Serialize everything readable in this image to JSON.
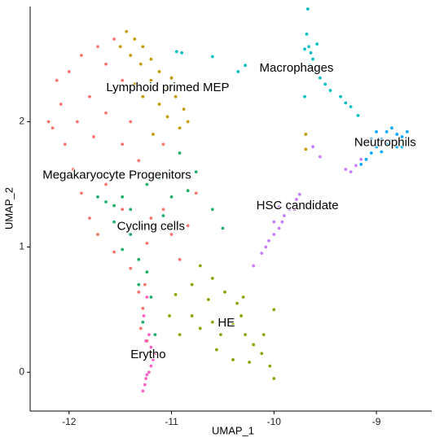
{
  "chart_data": {
    "type": "scatter",
    "xlabel": "UMAP_1",
    "ylabel": "UMAP_2",
    "xlim": [
      -12.38,
      -8.46
    ],
    "ylim": [
      -0.31,
      2.92
    ],
    "xticks": [
      -12,
      -11,
      -10,
      -9
    ],
    "yticks": [
      0,
      1,
      2
    ],
    "series": [
      {
        "name": "Megakaryocyte Progenitors",
        "color": "#F8766D",
        "x": [
          -12.12,
          -12.08,
          -12.16,
          -12.04,
          -11.96,
          -11.88,
          -11.8,
          -11.72,
          -11.56,
          -11.4,
          -11.32,
          -11.28,
          -11.24,
          -12.0,
          -11.88,
          -11.72,
          -11.56,
          -11.64,
          -11.48,
          -11.8,
          -11.64,
          -11.48,
          -11.32,
          -11.16,
          -11.08,
          -11.0,
          -10.84,
          -10.92,
          -11.24,
          -11.48,
          -11.64,
          -12.2,
          -11.92,
          -11.76,
          -11.4,
          -11.08,
          -11.2,
          -10.76,
          -11.3,
          -11.26
        ],
        "values": [
          2.33,
          2.14,
          1.95,
          1.82,
          1.62,
          1.43,
          1.23,
          1.1,
          0.96,
          0.83,
          0.64,
          0.51,
          0.25,
          2.4,
          2.53,
          2.6,
          2.66,
          2.46,
          2.33,
          2.2,
          2.07,
          1.82,
          1.69,
          1.56,
          1.3,
          1.1,
          1.17,
          0.9,
          1.03,
          1.3,
          1.5,
          2.0,
          2.0,
          1.88,
          2.0,
          1.82,
          1.23,
          1.43,
          0.35,
          0.7
        ]
      },
      {
        "name": "Lymphoid primed MEP",
        "color": "#C49A00",
        "x": [
          -11.44,
          -11.36,
          -11.28,
          -11.4,
          -11.2,
          -11.12,
          -11.2,
          -11.04,
          -10.96,
          -11.12,
          -10.88,
          -11.28,
          -11.04,
          -10.92,
          -11.3,
          -11.36,
          -11.0,
          -10.84,
          -11.5,
          -11.18,
          -9.69,
          -9.69
        ],
        "values": [
          2.72,
          2.66,
          2.6,
          2.53,
          2.5,
          2.4,
          2.33,
          2.27,
          2.2,
          2.14,
          2.1,
          2.2,
          2.04,
          1.95,
          2.46,
          2.3,
          2.35,
          2.0,
          2.6,
          1.9,
          1.78,
          1.9
        ]
      },
      {
        "name": "Cycling cells",
        "color": "#1FAE6B",
        "x": [
          -11.72,
          -11.64,
          -11.56,
          -11.48,
          -11.4,
          -11.56,
          -11.4,
          -11.48,
          -11.32,
          -11.24,
          -11.2,
          -11.28,
          -11.16,
          -11.08,
          -11.0,
          -10.84,
          -10.76,
          -10.92,
          -11.24,
          -11.12,
          -10.6,
          -10.5,
          -11.32,
          -11.0
        ],
        "values": [
          1.4,
          1.36,
          1.33,
          1.4,
          1.3,
          1.2,
          1.1,
          0.98,
          0.9,
          0.8,
          0.6,
          0.4,
          0.3,
          1.25,
          1.4,
          1.45,
          1.6,
          1.75,
          1.5,
          1.55,
          1.3,
          1.15,
          0.7,
          1.15
        ]
      },
      {
        "name": "HE",
        "color": "#8FA300",
        "x": [
          -10.72,
          -10.8,
          -10.96,
          -10.64,
          -10.48,
          -10.36,
          -10.3,
          -10.8,
          -10.72,
          -10.6,
          -10.52,
          -10.4,
          -10.32,
          -10.28,
          -10.2,
          -10.12,
          -10.04,
          -10.0,
          -10.1,
          -10.0,
          -11.02,
          -10.92,
          -10.56,
          -10.4,
          -10.24,
          -10.6
        ],
        "values": [
          0.85,
          0.7,
          0.62,
          0.58,
          0.64,
          0.55,
          0.6,
          0.45,
          0.35,
          0.4,
          0.3,
          0.38,
          0.45,
          0.3,
          0.22,
          0.15,
          0.05,
          -0.05,
          0.3,
          0.5,
          0.45,
          0.3,
          0.18,
          0.1,
          0.08,
          0.75
        ]
      },
      {
        "name": "HSC candidate",
        "color": "#C77CFF",
        "x": [
          -10.2,
          -10.12,
          -10.05,
          -10.0,
          -9.95,
          -9.9,
          -9.85,
          -9.78,
          -9.75,
          -9.92,
          -10.08,
          -9.95,
          -9.8,
          -10.0,
          -9.25,
          -9.2,
          -9.3,
          -9.55,
          -9.62,
          -9.15
        ],
        "values": [
          0.85,
          0.95,
          1.05,
          1.1,
          1.15,
          1.25,
          1.3,
          1.38,
          1.42,
          1.2,
          1.0,
          1.32,
          1.3,
          1.2,
          1.6,
          1.65,
          1.62,
          1.72,
          1.8,
          1.7
        ]
      },
      {
        "name": "Macrophages",
        "color": "#00BFC4",
        "x": [
          -9.68,
          -9.66,
          -9.64,
          -9.7,
          -9.62,
          -9.65,
          -9.6,
          -9.55,
          -9.5,
          -9.45,
          -9.35,
          -9.3,
          -9.25,
          -9.18,
          -9.58,
          -9.67,
          -9.7,
          -10.9,
          -10.95,
          -10.6,
          -10.35,
          -10.28
        ],
        "values": [
          2.7,
          2.6,
          2.55,
          2.58,
          2.5,
          2.45,
          2.4,
          2.35,
          2.3,
          2.25,
          2.2,
          2.15,
          2.12,
          2.05,
          2.62,
          2.9,
          2.2,
          2.55,
          2.56,
          2.52,
          2.4,
          2.45
        ]
      },
      {
        "name": "Neutrophils",
        "color": "#00A9FF",
        "x": [
          -8.8,
          -8.75,
          -8.7,
          -8.85,
          -8.9,
          -8.95,
          -9.0,
          -9.05,
          -9.1,
          -9.15,
          -8.8,
          -8.9,
          -8.95,
          -8.85,
          -8.75,
          -9.0,
          -9.05
        ],
        "values": [
          1.9,
          1.88,
          1.92,
          1.85,
          1.82,
          1.86,
          1.8,
          1.75,
          1.7,
          1.66,
          1.8,
          1.92,
          1.76,
          1.95,
          1.8,
          1.92,
          1.86
        ]
      },
      {
        "name": "Erytho",
        "color": "#FF61C3",
        "x": [
          -11.28,
          -11.26,
          -11.25,
          -11.22,
          -11.2,
          -11.18,
          -11.15,
          -11.2,
          -11.25,
          -11.22,
          -11.27,
          -11.24,
          -11.24
        ],
        "values": [
          -0.15,
          -0.1,
          -0.05,
          0.0,
          0.05,
          0.1,
          0.15,
          0.2,
          0.25,
          0.3,
          0.45,
          0.6,
          -0.02
        ]
      }
    ]
  }
}
